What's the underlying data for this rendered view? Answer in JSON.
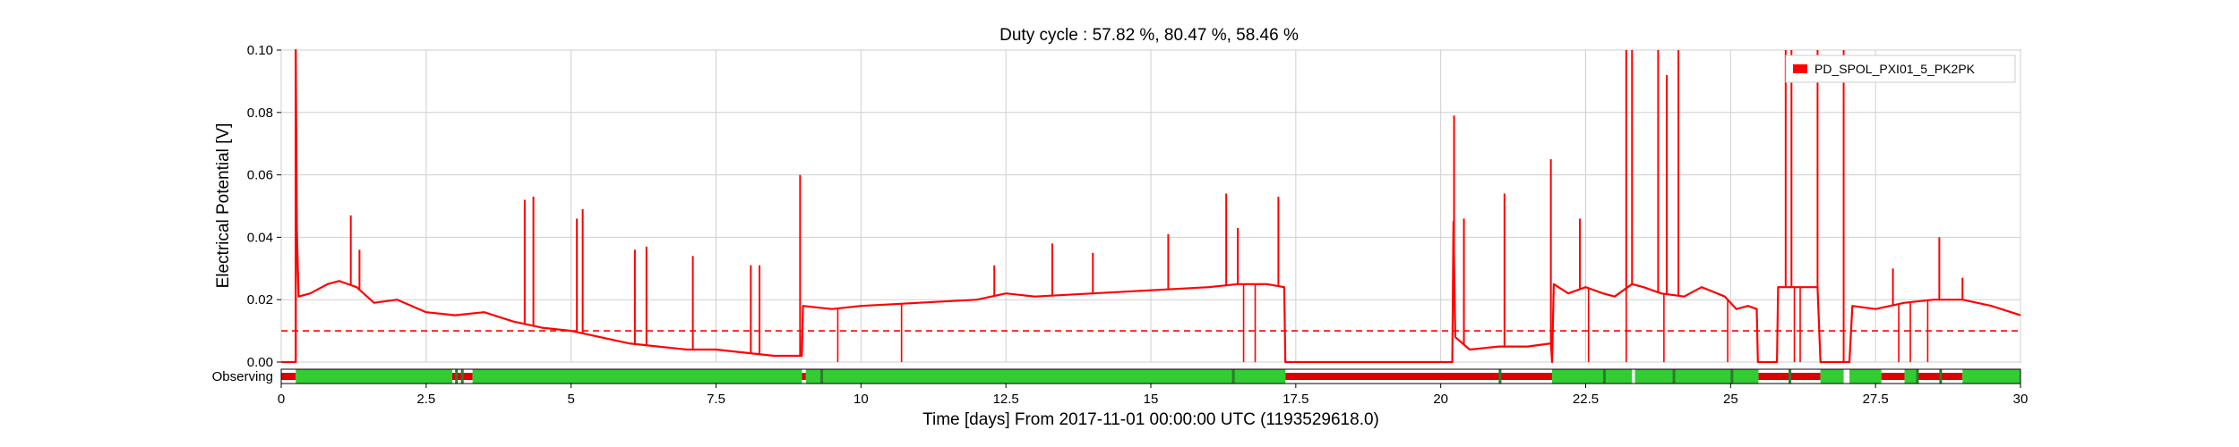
{
  "chart_data": {
    "type": "line",
    "title": "Duty cycle : 57.82 %, 80.47 %, 58.46 %",
    "xlabel": "Time [days] From 2017-11-01 00:00:00 UTC (1193529618.0)",
    "ylabel": "Electrical Potential [V]",
    "xlim": [
      0,
      30
    ],
    "ylim": [
      0,
      0.1
    ],
    "x_ticks": [
      "0",
      "2.5",
      "5",
      "7.5",
      "10",
      "12.5",
      "15",
      "17.5",
      "20",
      "22.5",
      "25",
      "27.5",
      "30"
    ],
    "y_ticks": [
      "0.00",
      "0.02",
      "0.04",
      "0.06",
      "0.08",
      "0.10"
    ],
    "grid": true,
    "legend_position": "top-right",
    "threshold": {
      "value": 0.01,
      "style": "dashed",
      "color": "#ff0000"
    },
    "series": [
      {
        "name": "PD_SPOL_PXI01_5_PK2PK",
        "color": "#ff0000",
        "points": [
          [
            0,
            0
          ],
          [
            0.25,
            0
          ],
          [
            0.25,
            0.1
          ],
          [
            0.27,
            0.042
          ],
          [
            0.3,
            0.021
          ],
          [
            0.5,
            0.022
          ],
          [
            0.8,
            0.025
          ],
          [
            1.0,
            0.026
          ],
          [
            1.3,
            0.024
          ],
          [
            1.6,
            0.019
          ],
          [
            2.0,
            0.02
          ],
          [
            2.5,
            0.016
          ],
          [
            3.0,
            0.015
          ],
          [
            3.5,
            0.016
          ],
          [
            4.0,
            0.013
          ],
          [
            4.5,
            0.011
          ],
          [
            5.0,
            0.01
          ],
          [
            5.5,
            0.008
          ],
          [
            6.0,
            0.006
          ],
          [
            6.5,
            0.005
          ],
          [
            7.0,
            0.004
          ],
          [
            7.5,
            0.004
          ],
          [
            8.0,
            0.003
          ],
          [
            8.5,
            0.002
          ],
          [
            8.98,
            0.002
          ],
          [
            9.0,
            0.018
          ],
          [
            9.5,
            0.017
          ],
          [
            10.0,
            0.018
          ],
          [
            11.0,
            0.019
          ],
          [
            12.0,
            0.02
          ],
          [
            12.5,
            0.022
          ],
          [
            13.0,
            0.021
          ],
          [
            14.0,
            0.022
          ],
          [
            15.0,
            0.023
          ],
          [
            16.0,
            0.024
          ],
          [
            16.5,
            0.025
          ],
          [
            17.0,
            0.025
          ],
          [
            17.3,
            0.024
          ],
          [
            17.32,
            0
          ],
          [
            20.2,
            0
          ],
          [
            20.22,
            0.045
          ],
          [
            20.25,
            0.008
          ],
          [
            20.5,
            0.004
          ],
          [
            21.0,
            0.005
          ],
          [
            21.5,
            0.005
          ],
          [
            21.9,
            0.006
          ],
          [
            21.92,
            0
          ],
          [
            21.95,
            0.025
          ],
          [
            22.2,
            0.022
          ],
          [
            22.5,
            0.024
          ],
          [
            22.8,
            0.022
          ],
          [
            23.0,
            0.021
          ],
          [
            23.3,
            0.025
          ],
          [
            23.5,
            0.024
          ],
          [
            23.8,
            0.022
          ],
          [
            24.2,
            0.021
          ],
          [
            24.5,
            0.024
          ],
          [
            24.9,
            0.021
          ],
          [
            25.1,
            0.017
          ],
          [
            25.3,
            0.018
          ],
          [
            25.45,
            0.017
          ],
          [
            25.47,
            0
          ],
          [
            25.8,
            0
          ],
          [
            25.82,
            0.024
          ],
          [
            26.5,
            0.024
          ],
          [
            26.55,
            0
          ],
          [
            27.05,
            0
          ],
          [
            27.1,
            0.018
          ],
          [
            27.5,
            0.017
          ],
          [
            28.0,
            0.019
          ],
          [
            28.5,
            0.02
          ],
          [
            29.0,
            0.02
          ],
          [
            29.5,
            0.018
          ],
          [
            30.0,
            0.015
          ]
        ],
        "spikes": [
          [
            0.25,
            0.1
          ],
          [
            1.2,
            0.047
          ],
          [
            1.35,
            0.036
          ],
          [
            4.2,
            0.052
          ],
          [
            4.35,
            0.053
          ],
          [
            5.1,
            0.046
          ],
          [
            5.2,
            0.049
          ],
          [
            6.1,
            0.036
          ],
          [
            6.3,
            0.037
          ],
          [
            7.1,
            0.034
          ],
          [
            8.1,
            0.031
          ],
          [
            8.25,
            0.031
          ],
          [
            8.95,
            0.06
          ],
          [
            12.3,
            0.031
          ],
          [
            13.3,
            0.038
          ],
          [
            14.0,
            0.035
          ],
          [
            15.3,
            0.041
          ],
          [
            16.3,
            0.054
          ],
          [
            16.5,
            0.043
          ],
          [
            17.2,
            0.053
          ],
          [
            20.23,
            0.079
          ],
          [
            20.4,
            0.046
          ],
          [
            21.1,
            0.054
          ],
          [
            21.9,
            0.065
          ],
          [
            22.4,
            0.046
          ],
          [
            23.2,
            0.1
          ],
          [
            23.3,
            0.1
          ],
          [
            23.75,
            0.1
          ],
          [
            23.9,
            0.092
          ],
          [
            24.1,
            0.1
          ],
          [
            25.95,
            0.1
          ],
          [
            26.05,
            0.1
          ],
          [
            26.5,
            0.1
          ],
          [
            26.95,
            0.1
          ],
          [
            27.8,
            0.03
          ],
          [
            28.6,
            0.04
          ],
          [
            29.0,
            0.027
          ]
        ],
        "drops": [
          9.6,
          10.7,
          16.6,
          16.8,
          22.55,
          23.2,
          23.85,
          24.95,
          25.5,
          26.1,
          26.2,
          27.9,
          28.1,
          28.4
        ]
      }
    ],
    "segments_row": {
      "label": "Observing",
      "active_color": "#33cc33",
      "inactive_color": "#dd0000",
      "marker_color": "#2a7d2a",
      "active_intervals": [
        [
          0.25,
          2.95
        ],
        [
          3.3,
          8.98
        ],
        [
          9.05,
          17.32
        ],
        [
          21.92,
          23.3
        ],
        [
          23.35,
          25.48
        ],
        [
          26.55,
          26.95
        ],
        [
          27.05,
          27.6
        ],
        [
          28.0,
          28.2
        ],
        [
          29.0,
          30.0
        ]
      ],
      "inactive_intervals": [
        [
          0,
          0.25
        ],
        [
          2.95,
          3.3
        ],
        [
          8.98,
          9.05
        ],
        [
          17.32,
          21.92
        ],
        [
          25.48,
          26.55
        ],
        [
          27.6,
          28.0
        ],
        [
          28.2,
          29.0
        ]
      ],
      "markers": [
        3.0,
        3.1,
        9.3,
        16.4,
        21.0,
        22.8,
        24.0,
        25.0,
        26.0,
        28.2,
        28.6
      ]
    }
  }
}
